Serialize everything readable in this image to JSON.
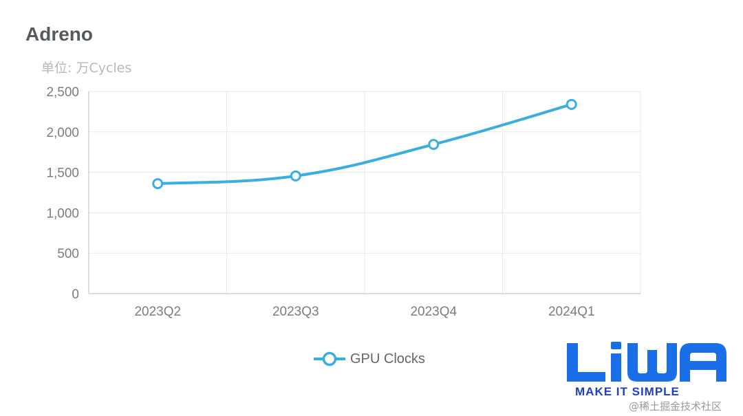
{
  "chart_data": {
    "type": "line",
    "title": "Adreno",
    "subtitle": "单位: 万Cycles",
    "categories": [
      "2023Q2",
      "2023Q3",
      "2023Q4",
      "2024Q1"
    ],
    "series": [
      {
        "name": "GPU Clocks",
        "values": [
          1360,
          1455,
          1845,
          2340
        ]
      }
    ],
    "ylim": [
      0,
      2500
    ],
    "yticks": [
      "0",
      "500",
      "1,000",
      "1,500",
      "2,000",
      "2,500"
    ],
    "grid": true,
    "smooth": true,
    "legend_position": "bottom-center",
    "colors": {
      "line": "#3aaee0",
      "grid": "#e9e9e9",
      "axis": "#c8c8c8"
    }
  },
  "branding": {
    "logo_text": "LiWA",
    "tagline": "MAKE IT SIMPLE",
    "watermark": "@稀土掘金技术社区",
    "colors": {
      "logo": "#1a6fe8",
      "tagline": "#1d3fc8"
    }
  }
}
